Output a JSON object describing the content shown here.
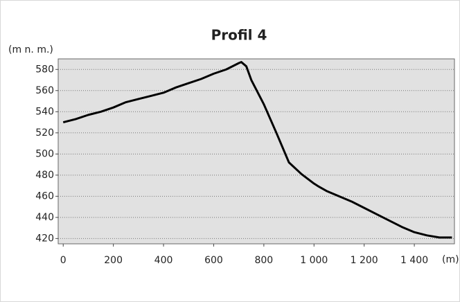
{
  "chart_data": {
    "type": "line",
    "title": "Profil 4",
    "y_label": "(m n. m.)",
    "x_label": "(m)",
    "x": [
      0,
      50,
      100,
      150,
      200,
      250,
      300,
      350,
      400,
      450,
      500,
      550,
      600,
      650,
      700,
      710,
      730,
      750,
      800,
      850,
      900,
      950,
      1000,
      1020,
      1050,
      1100,
      1150,
      1200,
      1250,
      1300,
      1350,
      1400,
      1450,
      1500,
      1550
    ],
    "series": [
      {
        "name": "Profil 4",
        "color": "#000000",
        "values": [
          530,
          533,
          537,
          540,
          544,
          549,
          552,
          555,
          558,
          563,
          567,
          571,
          576,
          580,
          586,
          587,
          583,
          570,
          547,
          520,
          492,
          481,
          472,
          469,
          465,
          460,
          455,
          449,
          443,
          437,
          431,
          426,
          423,
          421,
          421
        ]
      }
    ],
    "xlim": [
      -20,
      1560
    ],
    "ylim": [
      415,
      590
    ],
    "xticks": [
      0,
      200,
      400,
      600,
      800,
      {
        "value": 1000,
        "label": "1 000"
      },
      {
        "value": 1200,
        "label": "1 200"
      },
      {
        "value": 1400,
        "label": "1 400"
      }
    ],
    "yticks": [
      420,
      440,
      460,
      480,
      500,
      520,
      540,
      560,
      580
    ],
    "grid": true
  }
}
